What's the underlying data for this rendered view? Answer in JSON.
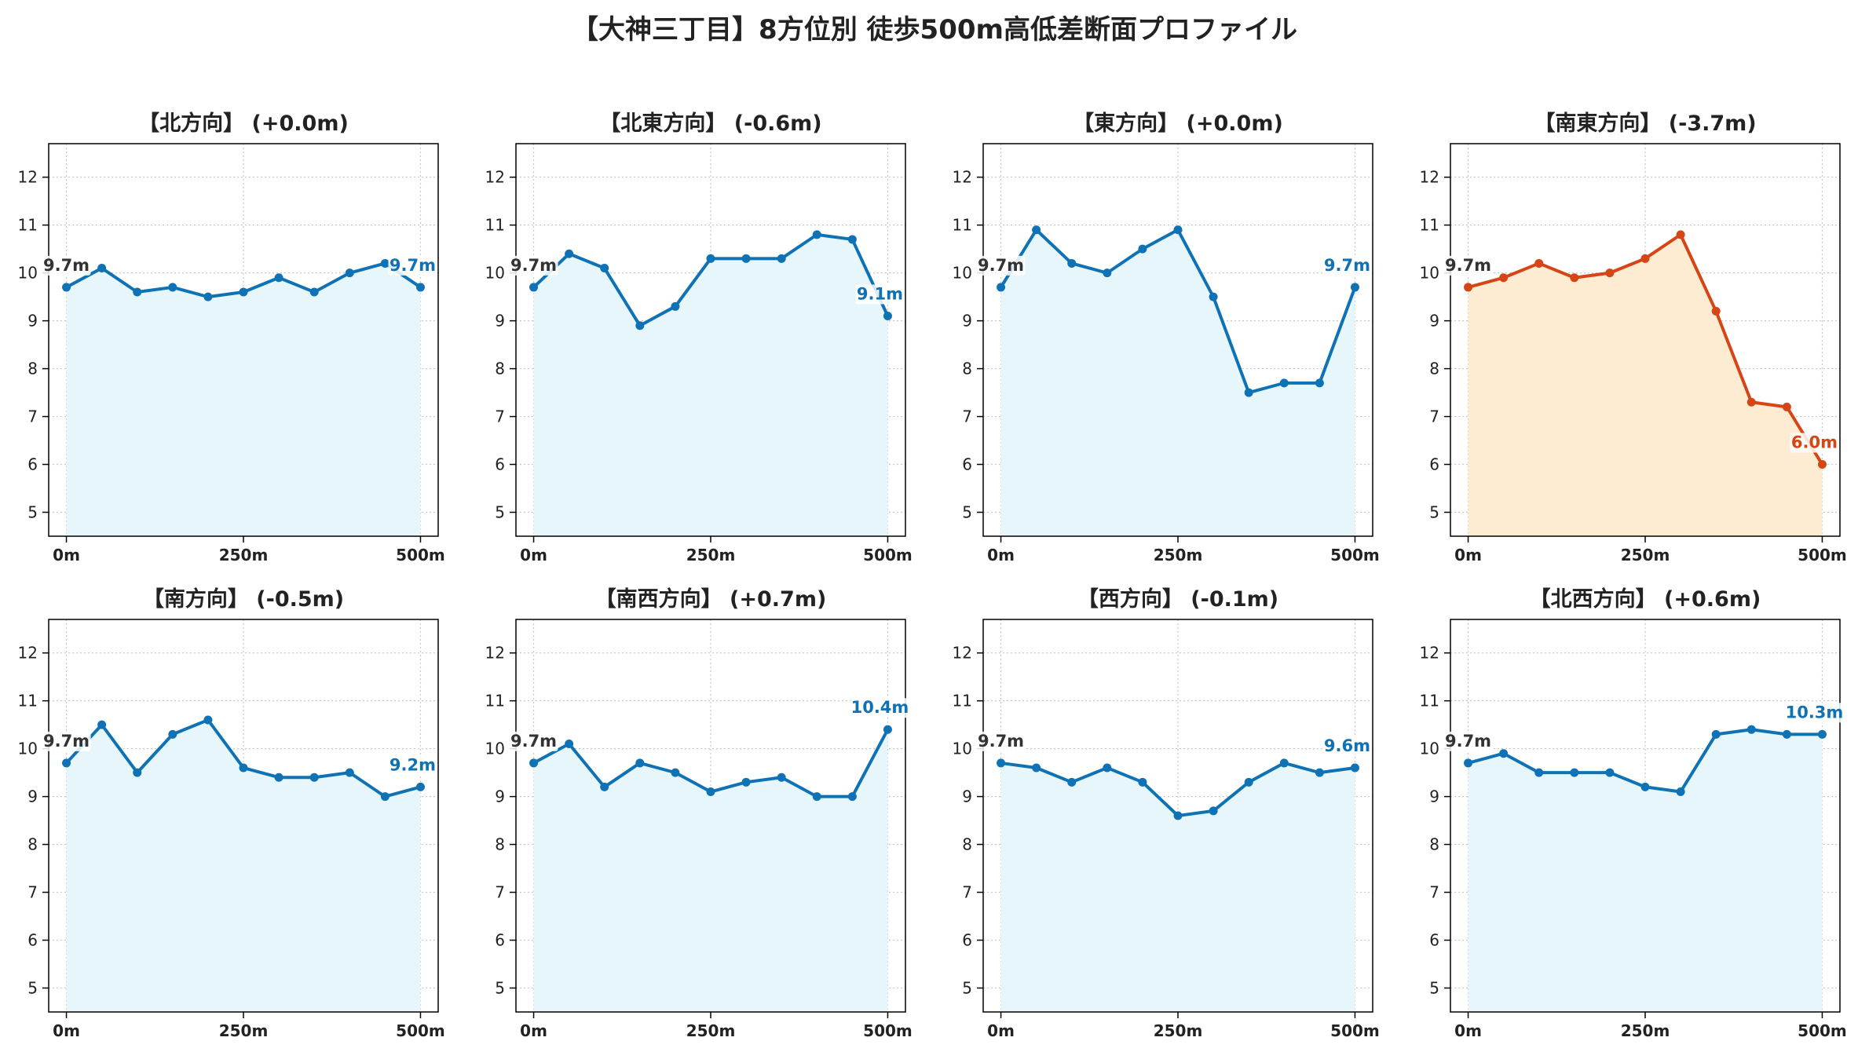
{
  "title": "【大神三丁目】8方位別 徒歩500m高低差断面プロファイル",
  "colors": {
    "normal_line": "#0f72b4",
    "normal_fill": "#e6f6fb",
    "highlight_line": "#d64515",
    "highlight_fill": "#fdecd2",
    "start_label": "#333333",
    "grid": "#c8c8c8"
  },
  "chart_data": [
    {
      "type": "line",
      "title": "【北方向】 (+0.0m)",
      "highlight": false,
      "x": [
        0,
        50,
        100,
        150,
        200,
        250,
        300,
        350,
        400,
        450,
        500
      ],
      "values": [
        9.7,
        10.1,
        9.6,
        9.7,
        9.5,
        9.6,
        9.9,
        9.6,
        10.0,
        10.2,
        9.7
      ],
      "start_label": "9.7m",
      "end_label": "9.7m",
      "xticks": [
        "0m",
        "250m",
        "500m"
      ],
      "yticks": [
        "5",
        "6",
        "7",
        "8",
        "9",
        "10",
        "11",
        "12"
      ],
      "ylim": [
        4.5,
        12.7
      ],
      "grid": true
    },
    {
      "type": "line",
      "title": "【北東方向】 (-0.6m)",
      "highlight": false,
      "x": [
        0,
        50,
        100,
        150,
        200,
        250,
        300,
        350,
        400,
        450,
        500
      ],
      "values": [
        9.7,
        10.4,
        10.1,
        8.9,
        9.3,
        10.3,
        10.3,
        10.3,
        10.8,
        10.7,
        9.1
      ],
      "start_label": "9.7m",
      "end_label": "9.1m",
      "xticks": [
        "0m",
        "250m",
        "500m"
      ],
      "yticks": [
        "5",
        "6",
        "7",
        "8",
        "9",
        "10",
        "11",
        "12"
      ],
      "ylim": [
        4.5,
        12.7
      ],
      "grid": true
    },
    {
      "type": "line",
      "title": "【東方向】 (+0.0m)",
      "highlight": false,
      "x": [
        0,
        50,
        100,
        150,
        200,
        250,
        300,
        350,
        400,
        450,
        500
      ],
      "values": [
        9.7,
        10.9,
        10.2,
        10.0,
        10.5,
        10.9,
        9.5,
        7.5,
        7.7,
        7.7,
        9.7
      ],
      "start_label": "9.7m",
      "end_label": "9.7m",
      "xticks": [
        "0m",
        "250m",
        "500m"
      ],
      "yticks": [
        "5",
        "6",
        "7",
        "8",
        "9",
        "10",
        "11",
        "12"
      ],
      "ylim": [
        4.5,
        12.7
      ],
      "grid": true
    },
    {
      "type": "line",
      "title": "【南東方向】 (-3.7m)",
      "highlight": true,
      "x": [
        0,
        50,
        100,
        150,
        200,
        250,
        300,
        350,
        400,
        450,
        500
      ],
      "values": [
        9.7,
        9.9,
        10.2,
        9.9,
        10.0,
        10.3,
        10.8,
        9.2,
        7.3,
        7.2,
        6.0
      ],
      "start_label": "9.7m",
      "end_label": "6.0m",
      "xticks": [
        "0m",
        "250m",
        "500m"
      ],
      "yticks": [
        "5",
        "6",
        "7",
        "8",
        "9",
        "10",
        "11",
        "12"
      ],
      "ylim": [
        4.5,
        12.7
      ],
      "grid": true
    },
    {
      "type": "line",
      "title": "【南方向】 (-0.5m)",
      "highlight": false,
      "x": [
        0,
        50,
        100,
        150,
        200,
        250,
        300,
        350,
        400,
        450,
        500
      ],
      "values": [
        9.7,
        10.5,
        9.5,
        10.3,
        10.6,
        9.6,
        9.4,
        9.4,
        9.5,
        9.0,
        9.2
      ],
      "start_label": "9.7m",
      "end_label": "9.2m",
      "xticks": [
        "0m",
        "250m",
        "500m"
      ],
      "yticks": [
        "5",
        "6",
        "7",
        "8",
        "9",
        "10",
        "11",
        "12"
      ],
      "ylim": [
        4.5,
        12.7
      ],
      "grid": true
    },
    {
      "type": "line",
      "title": "【南西方向】 (+0.7m)",
      "highlight": false,
      "x": [
        0,
        50,
        100,
        150,
        200,
        250,
        300,
        350,
        400,
        450,
        500
      ],
      "values": [
        9.7,
        10.1,
        9.2,
        9.7,
        9.5,
        9.1,
        9.3,
        9.4,
        9.0,
        9.0,
        10.4
      ],
      "start_label": "9.7m",
      "end_label": "10.4m",
      "xticks": [
        "0m",
        "250m",
        "500m"
      ],
      "yticks": [
        "5",
        "6",
        "7",
        "8",
        "9",
        "10",
        "11",
        "12"
      ],
      "ylim": [
        4.5,
        12.7
      ],
      "grid": true
    },
    {
      "type": "line",
      "title": "【西方向】 (-0.1m)",
      "highlight": false,
      "x": [
        0,
        50,
        100,
        150,
        200,
        250,
        300,
        350,
        400,
        450,
        500
      ],
      "values": [
        9.7,
        9.6,
        9.3,
        9.6,
        9.3,
        8.6,
        8.7,
        9.3,
        9.7,
        9.5,
        9.6
      ],
      "start_label": "9.7m",
      "end_label": "9.6m",
      "xticks": [
        "0m",
        "250m",
        "500m"
      ],
      "yticks": [
        "5",
        "6",
        "7",
        "8",
        "9",
        "10",
        "11",
        "12"
      ],
      "ylim": [
        4.5,
        12.7
      ],
      "grid": true
    },
    {
      "type": "line",
      "title": "【北西方向】 (+0.6m)",
      "highlight": false,
      "x": [
        0,
        50,
        100,
        150,
        200,
        250,
        300,
        350,
        400,
        450,
        500
      ],
      "values": [
        9.7,
        9.9,
        9.5,
        9.5,
        9.5,
        9.2,
        9.1,
        10.3,
        10.4,
        10.3,
        10.3
      ],
      "start_label": "9.7m",
      "end_label": "10.3m",
      "xticks": [
        "0m",
        "250m",
        "500m"
      ],
      "yticks": [
        "5",
        "6",
        "7",
        "8",
        "9",
        "10",
        "11",
        "12"
      ],
      "ylim": [
        4.5,
        12.7
      ],
      "grid": true
    }
  ]
}
